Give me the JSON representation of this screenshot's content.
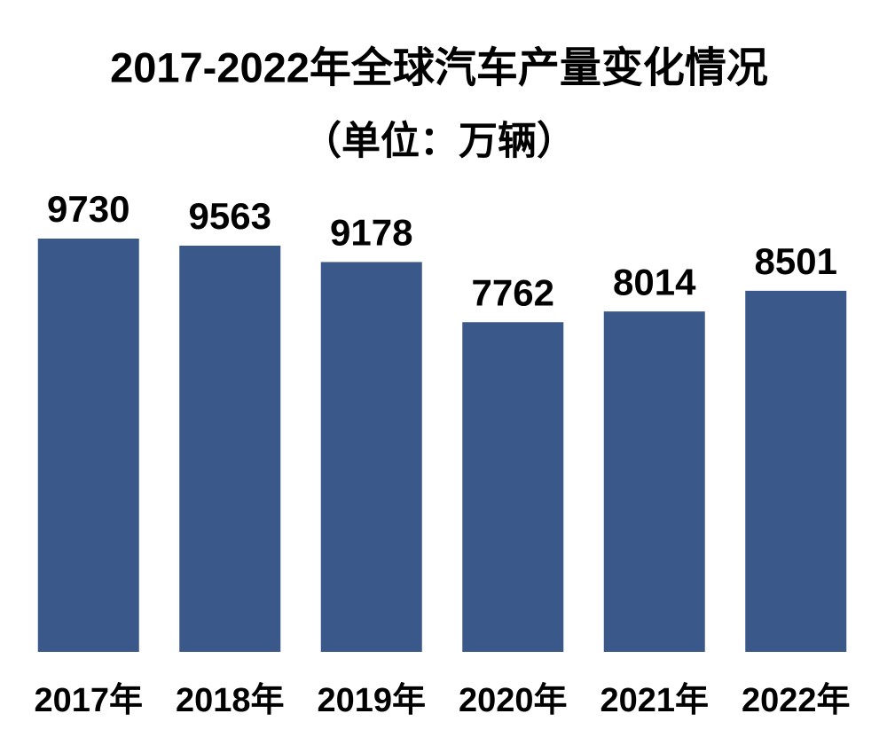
{
  "chart_data": {
    "type": "bar",
    "title": "2017-2022年全球汽车产量变化情况",
    "subtitle": "（单位：万辆）",
    "categories": [
      "2017年",
      "2018年",
      "2019年",
      "2020年",
      "2021年",
      "2022年"
    ],
    "values": [
      9730,
      9563,
      9178,
      7762,
      8014,
      8501
    ],
    "color": "#3a5889"
  }
}
